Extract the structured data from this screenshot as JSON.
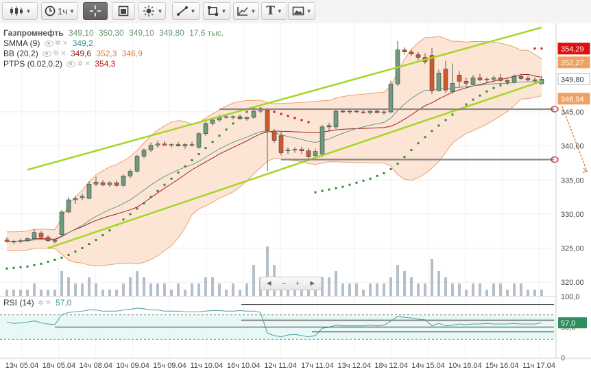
{
  "toolbar": {
    "interval_label": "1ч",
    "text_tool_label": "T"
  },
  "legend": {
    "symbol": "Газпромнефть",
    "open": "349,10",
    "high": "350,30",
    "low": "349,10",
    "close": "349,80",
    "volume": "17,6 тыс.",
    "smma_name": "SMMA (9)",
    "smma_value": "349,2",
    "bb_name": "BB (20,2)",
    "bb_mid": "349,6",
    "bb_upper": "352,3",
    "bb_lower": "346,9",
    "ptps_name": "PTPS (0.02,0.2)",
    "ptps_value": "354,3"
  },
  "rsi_legend": {
    "name": "RSI (14)",
    "value": "57,0"
  },
  "navigator": {
    "left": "◄",
    "minus": "–",
    "plus": "+",
    "right": "►"
  },
  "colors": {
    "up_candle": "#6e9a80",
    "down_candle": "#cc5a2e",
    "bb_fill": "#fde5d6",
    "bb_band": "#e8a070",
    "smma": "#5f9a8a",
    "bb_mid": "#9a2020",
    "ptps_up": "#2f8a2f",
    "ptps_down": "#dd1111",
    "trendline": "#a6d62a",
    "level_line": "#888888",
    "volume": "#b5bfca",
    "rsi_line": "#5aa7a8",
    "rsi_fill": "#d8f4f0"
  },
  "chart_data": {
    "type": "candlestick",
    "y_axis": {
      "min": 318,
      "max": 358,
      "ticks": [
        "320,00",
        "325,00",
        "330,00",
        "335,00",
        "340,00",
        "345,00"
      ]
    },
    "x_ticks": [
      "13ч 05.04",
      "18ч 05.04",
      "14ч 08.04",
      "10ч 09.04",
      "15ч 09.04",
      "11ч 10.04",
      "16ч 10.04",
      "12ч 11.04",
      "17ч 11.04",
      "13ч 12.04",
      "18ч 12.04",
      "14ч 15.04",
      "10ч 16.04",
      "15ч 16.04",
      "11ч 17.04"
    ],
    "price_labels": [
      {
        "text": "354,29",
        "value": 354.29,
        "color": "#dd1111",
        "text_color": "#ffffff"
      },
      {
        "text": "352,27",
        "value": 352.27,
        "color": "#f0a060",
        "text_color": "#ffffff"
      },
      {
        "text": "349,80",
        "value": 349.8,
        "color": "#ffffff",
        "text_color": "#333333"
      },
      {
        "text": "346,94",
        "value": 346.94,
        "color": "#f0a060",
        "text_color": "#ffffff"
      }
    ],
    "candles": [
      [
        326.2,
        326.6,
        325.8,
        326.0
      ],
      [
        325.9,
        326.2,
        325.6,
        326.0
      ],
      [
        326.0,
        326.4,
        325.7,
        326.1
      ],
      [
        326.1,
        326.6,
        325.9,
        326.4
      ],
      [
        326.4,
        327.8,
        326.3,
        327.3
      ],
      [
        327.2,
        327.5,
        326.4,
        326.6
      ],
      [
        326.6,
        326.9,
        325.9,
        326.1
      ],
      [
        326.1,
        326.4,
        325.7,
        326.0
      ],
      [
        327.0,
        330.6,
        326.8,
        330.3
      ],
      [
        330.3,
        332.5,
        330.1,
        332.1
      ],
      [
        332.1,
        332.6,
        331.5,
        332.3
      ],
      [
        332.4,
        333.0,
        332.0,
        332.6
      ],
      [
        332.3,
        334.8,
        332.2,
        334.4
      ],
      [
        334.4,
        335.5,
        334.1,
        334.7
      ],
      [
        334.6,
        335.0,
        334.1,
        334.3
      ],
      [
        334.3,
        334.8,
        334.0,
        334.6
      ],
      [
        334.6,
        335.0,
        334.0,
        334.2
      ],
      [
        334.2,
        335.8,
        334.0,
        335.6
      ],
      [
        335.6,
        336.6,
        335.3,
        336.3
      ],
      [
        336.3,
        338.7,
        336.1,
        338.5
      ],
      [
        338.5,
        339.6,
        338.2,
        339.4
      ],
      [
        339.4,
        340.5,
        339.1,
        340.1
      ],
      [
        340.1,
        340.8,
        339.7,
        340.3
      ],
      [
        340.3,
        340.7,
        340.0,
        340.1
      ],
      [
        340.1,
        340.4,
        339.8,
        340.2
      ],
      [
        340.2,
        340.6,
        339.9,
        340.0
      ],
      [
        340.0,
        340.4,
        339.6,
        340.2
      ],
      [
        340.2,
        340.6,
        339.9,
        340.1
      ],
      [
        339.8,
        342.0,
        339.6,
        341.8
      ],
      [
        341.8,
        343.6,
        341.5,
        343.3
      ],
      [
        343.3,
        344.2,
        343.0,
        343.8
      ],
      [
        343.8,
        344.6,
        343.5,
        344.3
      ],
      [
        344.3,
        344.6,
        344.0,
        344.2
      ],
      [
        344.2,
        344.5,
        343.9,
        344.3
      ],
      [
        344.3,
        344.6,
        343.9,
        344.0
      ],
      [
        344.0,
        344.3,
        343.7,
        344.2
      ],
      [
        344.2,
        345.4,
        344.0,
        345.1
      ],
      [
        345.1,
        345.5,
        344.8,
        345.2
      ],
      [
        345.3,
        345.6,
        336.3,
        342.2
      ],
      [
        342.2,
        342.5,
        340.4,
        340.8
      ],
      [
        341.5,
        342.1,
        338.6,
        339.0
      ],
      [
        339.3,
        339.8,
        338.8,
        339.4
      ],
      [
        339.4,
        339.8,
        339.0,
        339.5
      ],
      [
        339.5,
        339.9,
        338.8,
        339.3
      ],
      [
        339.3,
        339.7,
        338.0,
        338.4
      ],
      [
        338.6,
        339.6,
        338.2,
        339.2
      ],
      [
        338.8,
        343.1,
        338.4,
        342.8
      ],
      [
        342.8,
        343.4,
        342.1,
        343.0
      ],
      [
        342.8,
        345.4,
        342.5,
        345.1
      ],
      [
        345.1,
        345.4,
        344.8,
        345.0
      ],
      [
        345.0,
        345.3,
        344.7,
        345.1
      ],
      [
        345.1,
        345.3,
        344.8,
        345.0
      ],
      [
        345.0,
        345.3,
        344.7,
        344.9
      ],
      [
        344.9,
        345.2,
        344.6,
        345.1
      ],
      [
        345.1,
        345.4,
        344.8,
        344.9
      ],
      [
        344.9,
        345.2,
        344.6,
        345.0
      ],
      [
        345.0,
        349.6,
        344.8,
        349.1
      ],
      [
        349.1,
        355.4,
        348.8,
        354.1
      ],
      [
        354.1,
        354.5,
        353.4,
        353.8
      ],
      [
        353.8,
        354.2,
        353.2,
        353.5
      ],
      [
        353.4,
        353.8,
        352.6,
        353.0
      ],
      [
        353.0,
        353.6,
        352.0,
        352.4
      ],
      [
        353.3,
        354.4,
        347.6,
        348.1
      ],
      [
        348.1,
        351.2,
        348.0,
        350.7
      ],
      [
        351.3,
        352.5,
        347.8,
        348.2
      ],
      [
        348.0,
        352.1,
        347.7,
        349.2
      ],
      [
        350.4,
        351.0,
        348.6,
        349.5
      ],
      [
        349.5,
        350.0,
        348.8,
        349.2
      ],
      [
        349.0,
        350.4,
        348.9,
        350.0
      ],
      [
        350.0,
        350.6,
        349.5,
        349.7
      ],
      [
        349.7,
        350.1,
        349.3,
        349.8
      ],
      [
        349.8,
        350.3,
        349.4,
        350.0
      ],
      [
        350.0,
        350.6,
        349.4,
        349.6
      ],
      [
        349.6,
        350.0,
        349.1,
        349.4
      ],
      [
        349.4,
        350.5,
        349.2,
        350.2
      ],
      [
        350.2,
        350.6,
        349.7,
        349.9
      ],
      [
        349.9,
        350.3,
        349.5,
        349.7
      ],
      [
        349.7,
        350.1,
        349.3,
        349.6
      ],
      [
        349.1,
        350.3,
        349.1,
        349.8
      ]
    ],
    "volume": [
      1,
      1,
      1,
      1,
      2,
      1,
      1,
      1,
      4,
      3,
      2,
      2,
      3,
      2,
      1,
      1,
      1,
      2,
      3,
      4,
      3,
      2,
      2,
      2,
      1,
      2,
      1,
      2,
      2,
      3,
      3,
      2,
      1,
      2,
      1,
      2,
      5,
      3,
      8,
      5,
      3,
      2,
      2,
      2,
      1,
      2,
      3,
      3,
      4,
      2,
      2,
      2,
      1,
      2,
      2,
      2,
      3,
      5,
      4,
      3,
      2,
      2,
      6,
      4,
      3,
      2,
      2,
      1,
      2,
      2,
      1,
      2,
      2,
      1,
      2,
      2,
      1,
      1,
      1
    ],
    "volume_max": 8,
    "ptps": [
      [
        0,
        322.0
      ],
      [
        1,
        322.1
      ],
      [
        2,
        322.2
      ],
      [
        3,
        322.3
      ],
      [
        4,
        322.5
      ],
      [
        5,
        322.7
      ],
      [
        6,
        323.0
      ],
      [
        7,
        323.3
      ],
      [
        8,
        323.6
      ],
      [
        9,
        324.0
      ],
      [
        10,
        324.5
      ],
      [
        11,
        325.0
      ],
      [
        12,
        325.6
      ],
      [
        13,
        326.2
      ],
      [
        14,
        326.9
      ],
      [
        15,
        327.6
      ],
      [
        16,
        328.4
      ],
      [
        17,
        329.2
      ],
      [
        18,
        330.0
      ],
      [
        19,
        330.8
      ],
      [
        20,
        331.6
      ],
      [
        21,
        332.5
      ],
      [
        22,
        333.4
      ],
      [
        23,
        334.3
      ],
      [
        24,
        335.2
      ],
      [
        25,
        336.1
      ],
      [
        26,
        337.0
      ],
      [
        27,
        337.9
      ],
      [
        28,
        338.8
      ],
      [
        29,
        339.7
      ],
      [
        30,
        340.6
      ],
      [
        31,
        341.5
      ],
      [
        32,
        342.4
      ],
      [
        33,
        343.3
      ],
      [
        34,
        344.2
      ],
      [
        35,
        345.0
      ],
      [
        36,
        345.5
      ],
      [
        37,
        345.5
      ],
      [
        38,
        345.3
      ],
      [
        39,
        345.0
      ],
      [
        40,
        344.7
      ],
      [
        41,
        344.4
      ],
      [
        42,
        344.1
      ],
      [
        43,
        343.8
      ],
      [
        44,
        343.5
      ],
      [
        45,
        333.2
      ],
      [
        46,
        333.4
      ],
      [
        47,
        333.6
      ],
      [
        48,
        333.8
      ],
      [
        49,
        334.0
      ],
      [
        50,
        334.3
      ],
      [
        51,
        334.6
      ],
      [
        52,
        334.9
      ],
      [
        53,
        335.2
      ],
      [
        54,
        335.6
      ],
      [
        55,
        336.0
      ],
      [
        56,
        336.6
      ],
      [
        57,
        337.4
      ],
      [
        58,
        338.4
      ],
      [
        59,
        339.4
      ],
      [
        60,
        340.4
      ],
      [
        61,
        341.3
      ],
      [
        62,
        342.2
      ],
      [
        63,
        343.0
      ],
      [
        64,
        343.8
      ],
      [
        65,
        344.6
      ],
      [
        66,
        345.4
      ],
      [
        67,
        346.1
      ],
      [
        68,
        346.8
      ],
      [
        69,
        347.4
      ],
      [
        70,
        348.0
      ],
      [
        71,
        348.5
      ],
      [
        72,
        348.9
      ],
      [
        73,
        349.2
      ],
      [
        77,
        354.3
      ],
      [
        78,
        354.3
      ]
    ],
    "ptps_down_from_index": 37,
    "ptps_second_down_from_index": 77,
    "trendlines": [
      {
        "start": [
          3,
          336.5
        ],
        "end": [
          78,
          357.4
        ]
      },
      {
        "start": [
          6,
          325.0
        ],
        "end": [
          78,
          349.5
        ]
      }
    ],
    "levels": [
      {
        "value": 345.4,
        "from_index": 31,
        "to_index": 79
      },
      {
        "value": 338.0,
        "from_index": 40,
        "to_index": 79
      }
    ],
    "rsi": {
      "ticks": [
        "100,0",
        "50,0",
        "0"
      ],
      "levels": [
        70,
        30
      ],
      "value": 57.0,
      "values": [
        58,
        56,
        57,
        58,
        60,
        57,
        55,
        54,
        70,
        74,
        75,
        76,
        78,
        78,
        76,
        76,
        76,
        78,
        79,
        81,
        80,
        78,
        78,
        76,
        76,
        76,
        75,
        75,
        75,
        76,
        77,
        77,
        76,
        76,
        77,
        76,
        76,
        74,
        40,
        36,
        34,
        37,
        38,
        36,
        34,
        36,
        48,
        50,
        53,
        52,
        52,
        52,
        52,
        53,
        52,
        53,
        60,
        67,
        66,
        65,
        63,
        62,
        52,
        56,
        52,
        53,
        55,
        54,
        55,
        55,
        56,
        55,
        55,
        55,
        56,
        55,
        55,
        55,
        57
      ]
    }
  }
}
